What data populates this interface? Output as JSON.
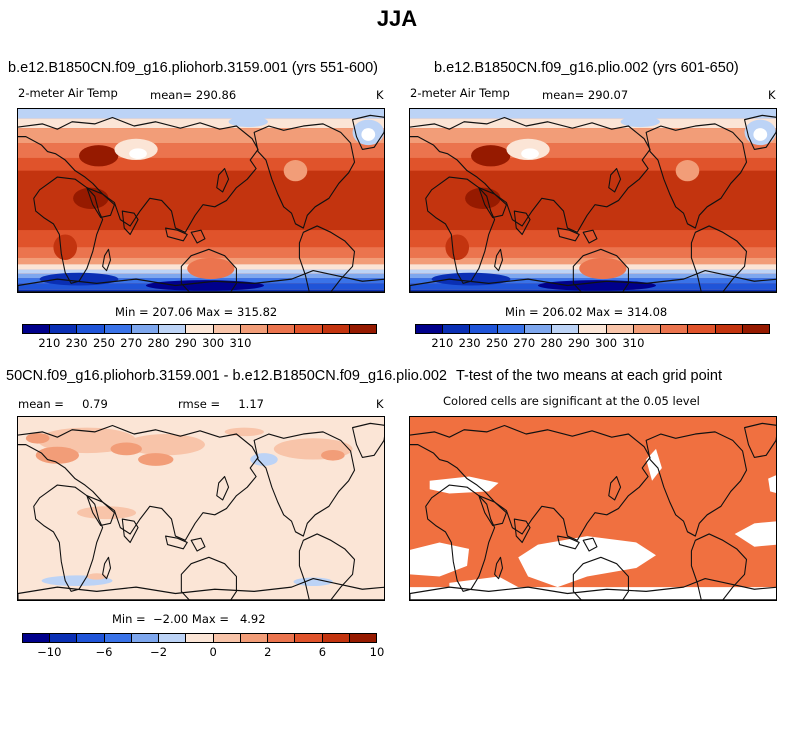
{
  "main_title": "JJA",
  "colors": {
    "abs_scale": [
      "#00008b",
      "#0a2fb4",
      "#1f54d8",
      "#3a73e8",
      "#7ea7ee",
      "#bcd3f6",
      "#fbe5d6",
      "#f8c4a9",
      "#f29d78",
      "#eb744e",
      "#e0532b",
      "#c3340f",
      "#961a00"
    ],
    "diff_scale": [
      "#00008b",
      "#0a2fb4",
      "#1f54d8",
      "#3a73e8",
      "#7ea7ee",
      "#bcd3f6",
      "#fbe5d6",
      "#f8c4a9",
      "#f29d78",
      "#eb744e",
      "#e0532b",
      "#c3340f",
      "#961a00"
    ],
    "significant": "#f07040"
  },
  "chart_data": [
    {
      "type": "heatmap",
      "panel": "top-left",
      "title": "b.e12.B1850CN.f09_g16.pliohorb.3159.001 (yrs 551-600)",
      "variable": "2-meter Air Temp",
      "mean_label": "mean= 290.86",
      "mean": 290.86,
      "units": "K",
      "min_max_label": "Min = 207.06 Max = 315.82",
      "min": 207.06,
      "max": 315.82,
      "colorbar_ticks": [
        "210",
        "230",
        "250",
        "270",
        "280",
        "290",
        "300",
        "310"
      ]
    },
    {
      "type": "heatmap",
      "panel": "top-right",
      "title": "b.e12.B1850CN.f09_g16.plio.002 (yrs 601-650)",
      "variable": "2-meter Air Temp",
      "mean_label": "mean= 290.07",
      "mean": 290.07,
      "units": "K",
      "min_max_label": "Min = 206.02 Max = 314.08",
      "min": 206.02,
      "max": 314.08,
      "colorbar_ticks": [
        "210",
        "230",
        "250",
        "270",
        "280",
        "290",
        "300",
        "310"
      ]
    },
    {
      "type": "heatmap",
      "panel": "bottom-left",
      "title": "50CN.f09_g16.pliohorb.3159.001 - b.e12.B1850CN.f09_g16.plio.002",
      "mean_label": "mean =     0.79",
      "mean": 0.79,
      "rmse_label": "rmse =     1.17",
      "rmse": 1.17,
      "units": "K",
      "min_max_label": "Min =  −2.00 Max =   4.92",
      "min": -2.0,
      "max": 4.92,
      "colorbar_ticks": [
        "−10",
        "−6",
        "−2",
        "0",
        "2",
        "6",
        "10"
      ]
    },
    {
      "type": "heatmap",
      "panel": "bottom-right",
      "title": "T-test of the two means at each grid point",
      "subtitle": "Colored cells are significant at the 0.05 level"
    }
  ]
}
